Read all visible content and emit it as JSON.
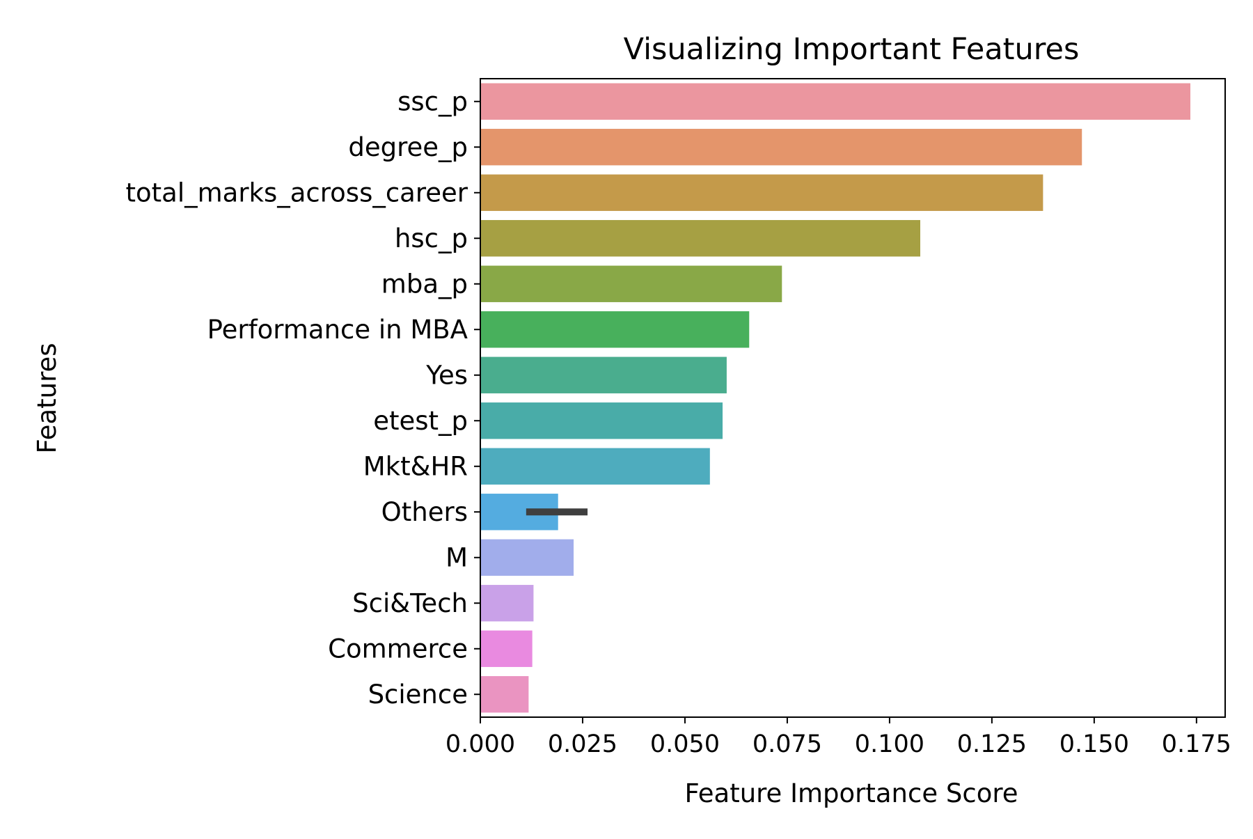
{
  "chart_data": {
    "type": "bar",
    "orientation": "horizontal",
    "title": "Visualizing Important Features",
    "xlabel": "Feature Importance Score",
    "ylabel": "Features",
    "xlim": [
      0,
      0.182
    ],
    "xticks": [
      "0.000",
      "0.025",
      "0.050",
      "0.075",
      "0.100",
      "0.125",
      "0.150",
      "0.175"
    ],
    "xtick_values": [
      0,
      0.025,
      0.05,
      0.075,
      0.1,
      0.125,
      0.15,
      0.175
    ],
    "grid": false,
    "legend": "none",
    "categories": [
      "ssc_p",
      "degree_p",
      "total_marks_across_career",
      "hsc_p",
      "mba_p",
      "Performance in MBA",
      "Yes",
      "etest_p",
      "Mkt&HR",
      "Others",
      "M",
      "Sci&Tech",
      "Commerce",
      "Science"
    ],
    "values": [
      0.1735,
      0.147,
      0.1375,
      0.1075,
      0.0737,
      0.0657,
      0.0602,
      0.0592,
      0.0561,
      0.019,
      0.0228,
      0.013,
      0.0127,
      0.0118
    ],
    "error_bar": {
      "category": "Others",
      "low": 0.0112,
      "high": 0.0262
    },
    "colors": [
      "#eb969f",
      "#e4956b",
      "#c49a4a",
      "#a6a043",
      "#89a847",
      "#48b05c",
      "#4aad8e",
      "#49aca8",
      "#4eacbe",
      "#54ace0",
      "#a1adeb",
      "#c9a1e8",
      "#e98ae0",
      "#ea94c1"
    ]
  }
}
